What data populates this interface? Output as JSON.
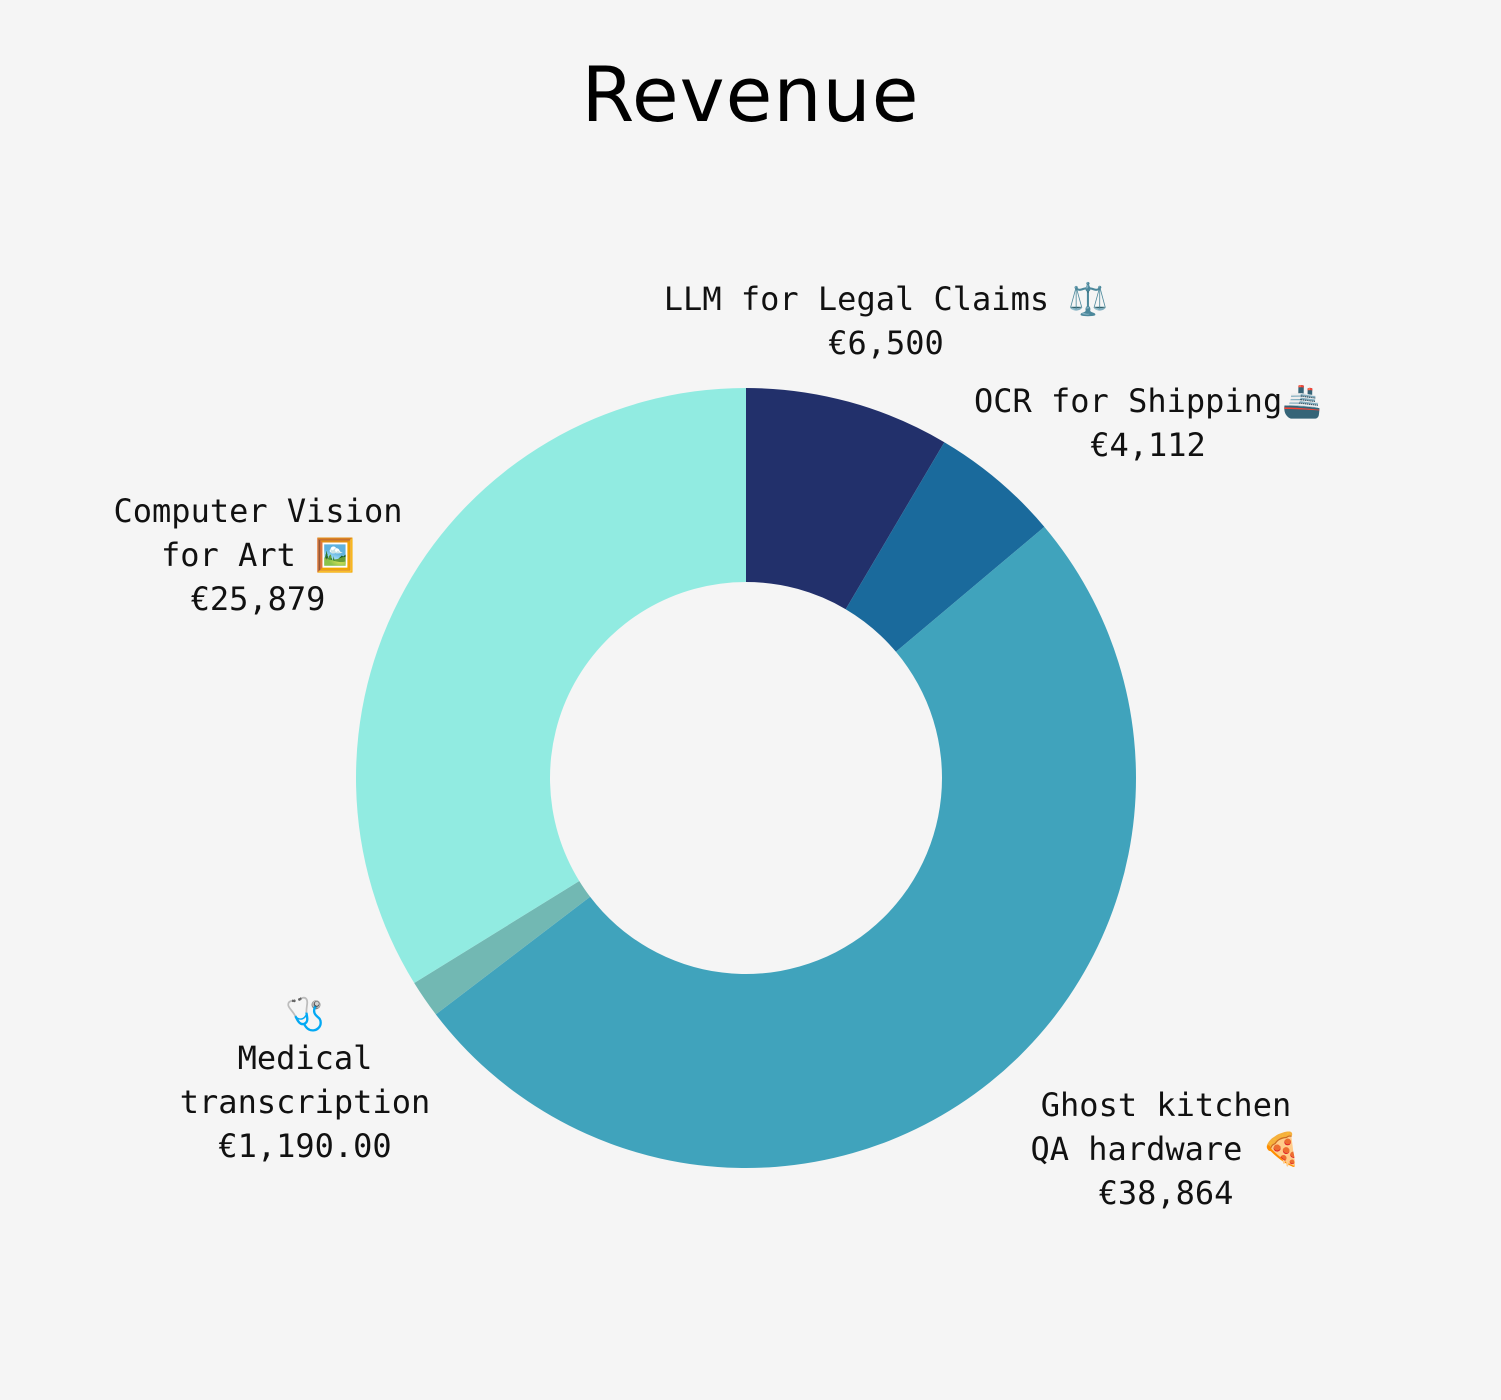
{
  "chart_data": {
    "type": "pie",
    "style": "donut",
    "title": "Revenue",
    "slices": [
      {
        "label": "LLM for Legal Claims ⚖️",
        "label_lines": [
          "LLM for Legal Claims ⚖️"
        ],
        "value": 6500,
        "value_text": "€6,500",
        "color": "#22306b"
      },
      {
        "label": "OCR for Shipping🚢",
        "label_lines": [
          "OCR for Shipping🚢"
        ],
        "value": 4112,
        "value_text": "€4,112",
        "color": "#1a6a9c"
      },
      {
        "label": "Ghost kitchen QA hardware 🍕",
        "label_lines": [
          "Ghost kitchen",
          "QA hardware 🍕"
        ],
        "value": 38864,
        "value_text": "€38,864",
        "color": "#40a3bc"
      },
      {
        "label": "🩺 Medical transcription",
        "label_lines": [
          "🩺",
          "Medical",
          "transcription"
        ],
        "value": 1190,
        "value_text": "€1,190.00",
        "color": "#72b8b3"
      },
      {
        "label": "Computer Vision for Art 🖼️",
        "label_lines": [
          "Computer Vision",
          "for Art 🖼️"
        ],
        "value": 25879,
        "value_text": "€25,879",
        "color": "#91ebe1"
      }
    ],
    "legend": "none"
  }
}
